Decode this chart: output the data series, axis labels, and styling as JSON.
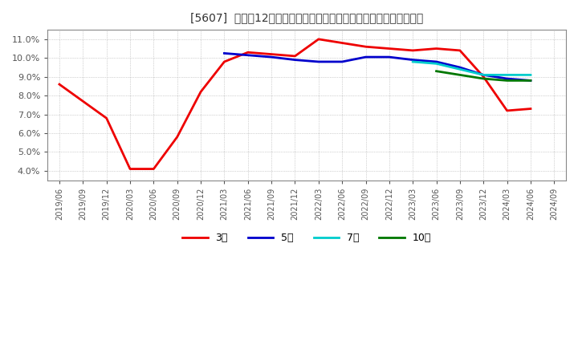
{
  "title": "[5607]  売上高12か月移動合計の対前年同期増減率の標準偏差の推移",
  "ylim": [
    0.035,
    0.115
  ],
  "yticks": [
    0.04,
    0.05,
    0.06,
    0.07,
    0.08,
    0.09,
    0.1,
    0.11
  ],
  "background_color": "#ffffff",
  "plot_bg_color": "#ffffff",
  "grid_color": "#aaaaaa",
  "series": {
    "3year": {
      "color": "#ee0000",
      "label": "3年",
      "linewidth": 2.0,
      "dates": [
        "2019/06",
        "2019/09",
        "2019/12",
        "2020/03",
        "2020/06",
        "2020/09",
        "2020/12",
        "2021/03",
        "2021/06",
        "2021/09",
        "2021/12",
        "2022/03",
        "2022/06",
        "2022/09",
        "2022/12",
        "2023/03",
        "2023/06",
        "2023/09",
        "2023/12",
        "2024/03",
        "2024/06"
      ],
      "values": [
        0.086,
        0.077,
        0.068,
        0.041,
        0.041,
        0.058,
        0.082,
        0.098,
        0.103,
        0.102,
        0.101,
        0.11,
        0.108,
        0.106,
        0.105,
        0.104,
        0.105,
        0.104,
        0.09,
        0.072,
        0.073
      ]
    },
    "5year": {
      "color": "#0000cc",
      "label": "5年",
      "linewidth": 2.0,
      "dates": [
        "2021/03",
        "2021/06",
        "2021/09",
        "2021/12",
        "2022/03",
        "2022/06",
        "2022/09",
        "2022/12",
        "2023/03",
        "2023/06",
        "2023/09",
        "2023/12",
        "2024/03",
        "2024/06"
      ],
      "values": [
        0.1025,
        0.1015,
        0.1005,
        0.099,
        0.098,
        0.098,
        0.1005,
        0.1005,
        0.099,
        0.098,
        0.095,
        0.091,
        0.089,
        0.088
      ]
    },
    "7year": {
      "color": "#00cccc",
      "label": "7年",
      "linewidth": 2.0,
      "dates": [
        "2023/03",
        "2023/06",
        "2023/09",
        "2023/12",
        "2024/03",
        "2024/06"
      ],
      "values": [
        0.098,
        0.097,
        0.094,
        0.091,
        0.091,
        0.091
      ]
    },
    "10year": {
      "color": "#007700",
      "label": "10年",
      "linewidth": 2.0,
      "dates": [
        "2023/06",
        "2023/09",
        "2023/12",
        "2024/03",
        "2024/06"
      ],
      "values": [
        0.093,
        0.091,
        0.089,
        0.088,
        0.088
      ]
    }
  },
  "xtick_labels": [
    "2019/06",
    "2019/09",
    "2019/12",
    "2020/03",
    "2020/06",
    "2020/09",
    "2020/12",
    "2021/03",
    "2021/06",
    "2021/09",
    "2021/12",
    "2022/03",
    "2022/06",
    "2022/09",
    "2022/12",
    "2023/03",
    "2023/06",
    "2023/09",
    "2023/12",
    "2024/03",
    "2024/06",
    "2024/09"
  ],
  "legend_labels": [
    "3年",
    "5年",
    "7年",
    "10年"
  ],
  "legend_colors": [
    "#ee0000",
    "#0000cc",
    "#00cccc",
    "#007700"
  ]
}
